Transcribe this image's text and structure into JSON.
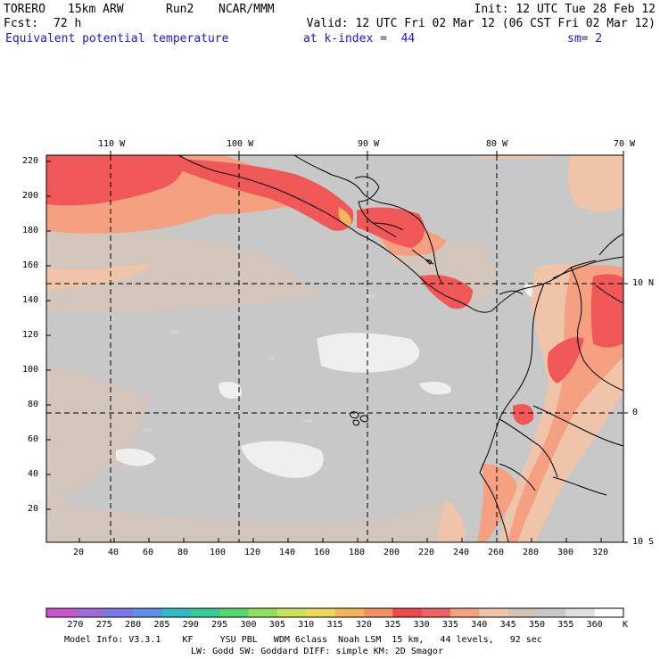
{
  "header": {
    "model": "TORERO",
    "resolution": "15km ARW",
    "run": "Run2",
    "org": "NCAR/MMM",
    "init": "Init: 12 UTC Tue 28 Feb 12",
    "fcst_label": "Fcst:",
    "fcst_hours": "72 h",
    "valid": "Valid: 12 UTC Fri 02 Mar 12 (06 CST Fri 02 Mar 12)",
    "field": "Equivalent potential temperature",
    "level": "at k-index =  44",
    "smoothing": "sm= 2"
  },
  "map": {
    "top_lon_labels": [
      "110 W",
      "100 W",
      "90 W",
      "80 W",
      "70 W"
    ],
    "right_lat_labels": [
      "10 N",
      "0",
      "10 S"
    ],
    "y_ticks": [
      "220",
      "200",
      "180",
      "160",
      "140",
      "120",
      "100",
      "80",
      "60",
      "40",
      "20"
    ],
    "x_ticks": [
      "20",
      "40",
      "60",
      "80",
      "100",
      "120",
      "140",
      "160",
      "180",
      "200",
      "220",
      "240",
      "260",
      "280",
      "300",
      "320"
    ]
  },
  "legend": {
    "values": [
      "270",
      "275",
      "280",
      "285",
      "290",
      "295",
      "300",
      "305",
      "310",
      "315",
      "320",
      "325",
      "330",
      "335",
      "340",
      "345",
      "350",
      "355",
      "360"
    ],
    "unit": "K",
    "colors": [
      "#cc55cc",
      "#a06ad8",
      "#7c78e8",
      "#5f8fe8",
      "#2ebcc6",
      "#34cf98",
      "#52d86c",
      "#92e05a",
      "#c8e25a",
      "#eed95a",
      "#f5b55a",
      "#f59060",
      "#f04848",
      "#f06060",
      "#f5a080",
      "#f0c4a8",
      "#d4c4b8",
      "#c8c8c8",
      "#e0e0e0",
      "#ffffff"
    ]
  },
  "footer": {
    "line1": "Model Info: V3.3.1    KF     YSU PBL   WDM 6class  Noah LSM  15 km,   44 levels,   92 sec",
    "line2": "LW: Godd SW: Goddard DIFF: simple KM: 2D Smagor"
  }
}
